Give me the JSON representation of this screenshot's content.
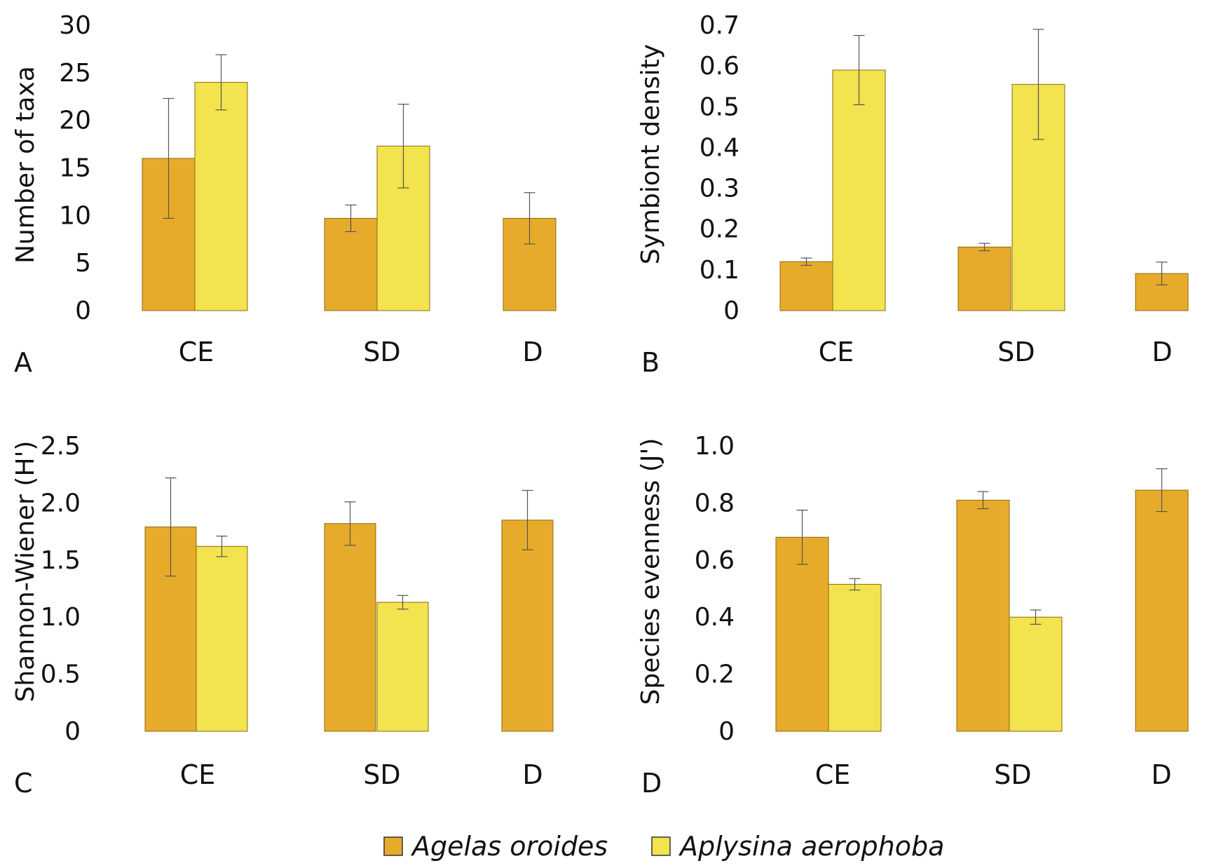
{
  "legend": [
    {
      "name": "Agelas oroides",
      "color": "#e6ab2a"
    },
    {
      "name": "Aplysina aerophoba",
      "color": "#f2e34f"
    }
  ],
  "colors": {
    "agelas": "#e6ab2a",
    "aplysina": "#f2e34f",
    "border": "#8a6a10",
    "error_bar": "#555555"
  },
  "chart_data": [
    {
      "panel": "A",
      "type": "bar",
      "ylabel": "Number of taxa",
      "categories": [
        "CE",
        "SD",
        "D"
      ],
      "yticks": [
        "0",
        "5",
        "10",
        "15",
        "20",
        "25",
        "30"
      ],
      "ylim": [
        0,
        30
      ],
      "series": [
        {
          "name": "Agelas oroides",
          "values": [
            16,
            9.7,
            9.7
          ],
          "errors": [
            6.3,
            1.4,
            2.7
          ]
        },
        {
          "name": "Aplysina aerophoba",
          "values": [
            24,
            17.3,
            null
          ],
          "errors": [
            2.9,
            4.4,
            null
          ]
        }
      ]
    },
    {
      "panel": "B",
      "type": "bar",
      "ylabel": "Symbiont density",
      "categories": [
        "CE",
        "SD",
        "D"
      ],
      "yticks": [
        "0",
        "0.1",
        "0.2",
        "0.3",
        "0.4",
        "0.5",
        "0.6",
        "0.7"
      ],
      "ylim": [
        0,
        0.7
      ],
      "series": [
        {
          "name": "Agelas oroides",
          "values": [
            0.12,
            0.156,
            0.091
          ],
          "errors": [
            0.009,
            0.009,
            0.028
          ]
        },
        {
          "name": "Aplysina aerophoba",
          "values": [
            0.59,
            0.555,
            null
          ],
          "errors": [
            0.085,
            0.135,
            null
          ]
        }
      ]
    },
    {
      "panel": "C",
      "type": "bar",
      "ylabel": "Shannon-Wiener (H')",
      "categories": [
        "CE",
        "SD",
        "D"
      ],
      "yticks": [
        "0",
        "0.5",
        "1.0",
        "1.5",
        "2.0",
        "2.5"
      ],
      "ylim": [
        0,
        2.5
      ],
      "series": [
        {
          "name": "Agelas oroides",
          "values": [
            1.79,
            1.82,
            1.85
          ],
          "errors": [
            0.43,
            0.19,
            0.26
          ]
        },
        {
          "name": "Aplysina aerophoba",
          "values": [
            1.62,
            1.13,
            null
          ],
          "errors": [
            0.09,
            0.06,
            null
          ]
        }
      ]
    },
    {
      "panel": "D",
      "type": "bar",
      "ylabel": "Species evenness (J')",
      "categories": [
        "CE",
        "SD",
        "D"
      ],
      "yticks": [
        "0",
        "0.2",
        "0.4",
        "0.6",
        "0.8",
        "1.0"
      ],
      "ylim": [
        0,
        1.0
      ],
      "series": [
        {
          "name": "Agelas oroides",
          "values": [
            0.68,
            0.81,
            0.845
          ],
          "errors": [
            0.095,
            0.03,
            0.075
          ]
        },
        {
          "name": "Aplysina aerophoba",
          "values": [
            0.515,
            0.4,
            null
          ],
          "errors": [
            0.02,
            0.025,
            null
          ]
        }
      ]
    }
  ]
}
